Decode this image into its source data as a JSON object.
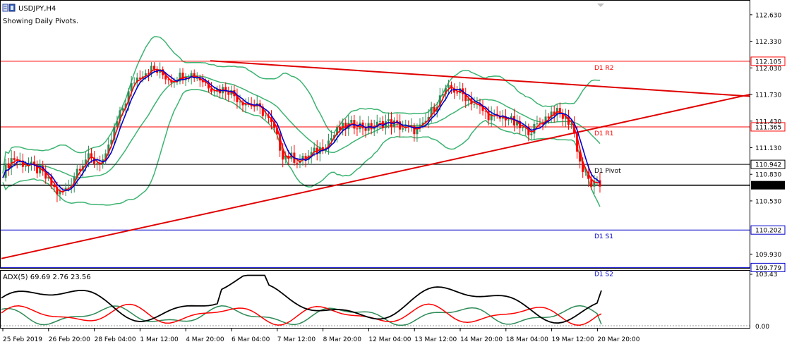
{
  "header": {
    "symbol": "USDJPY,H4",
    "subtitle": "Showing Daily Pivots."
  },
  "price_axis": {
    "ticks": [
      "112.630",
      "112.330",
      "112.030",
      "111.730",
      "111.430",
      "111.130",
      "110.830",
      "110.530",
      "109.930"
    ],
    "tick_values": [
      112.63,
      112.33,
      112.03,
      111.73,
      111.43,
      111.13,
      110.83,
      110.53,
      109.93
    ],
    "current_price": "110.707",
    "current_value": 110.707
  },
  "pivots": [
    {
      "key": "r2",
      "label": "D1 R2",
      "price_label": "112.105",
      "value": 112.105,
      "color": "#ff0000"
    },
    {
      "key": "r1",
      "label": "D1 R1",
      "price_label": "111.365",
      "value": 111.365,
      "color": "#ff0000"
    },
    {
      "key": "pivot",
      "label": "D1 Pivot",
      "price_label": "110.942",
      "value": 110.942,
      "color": "#000000"
    },
    {
      "key": "s1",
      "label": "D1 S1",
      "price_label": "110.202",
      "value": 110.202,
      "color": "#0000cc"
    },
    {
      "key": "s2",
      "label": "D1 S2",
      "price_label": "109.779",
      "value": 109.779,
      "color": "#0000cc"
    }
  ],
  "time_axis": {
    "labels": [
      "25 Feb 2019",
      "26 Feb 20:00",
      "28 Feb 04:00",
      "1 Mar 12:00",
      "4 Mar 20:00",
      "6 Mar 04:00",
      "7 Mar 12:00",
      "8 Mar 20:00",
      "12 Mar 04:00",
      "13 Mar 12:00",
      "14 Mar 20:00",
      "18 Mar 04:00",
      "19 Mar 12:00",
      "20 Mar 20:00"
    ]
  },
  "indicator": {
    "title": "ADX(5) 69.69 2.76 23.56",
    "scale_top": "103.43",
    "scale_bottom": "0.00",
    "adx": 69.69,
    "plus_di": 2.76,
    "minus_di": 23.56,
    "colors": {
      "adx": "#000000",
      "plus_di": "#2e8b57",
      "minus_di": "#ff0000"
    }
  },
  "colors": {
    "bull": "#2e8b57",
    "bear": "#ff0000",
    "bollinger": "#3cb371",
    "ma_fast": "#ff0000",
    "ma_slow": "#0000cc",
    "trendline": "#e00000"
  },
  "chart_data": {
    "type": "candlestick",
    "symbol": "USDJPY",
    "timeframe": "H4",
    "ylim": [
      109.79,
      112.78
    ],
    "close_profile": [
      110.85,
      111.02,
      110.96,
      110.92,
      110.86,
      110.74,
      110.6,
      110.68,
      110.9,
      111.02,
      110.96,
      111.0,
      111.35,
      111.62,
      111.88,
      111.98,
      112.02,
      111.96,
      111.9,
      111.94,
      111.97,
      111.92,
      111.84,
      111.78,
      111.8,
      111.7,
      111.64,
      111.6,
      111.52,
      111.35,
      111.05,
      111.02,
      110.98,
      111.05,
      111.12,
      111.22,
      111.33,
      111.38,
      111.4,
      111.35,
      111.38,
      111.42,
      111.4,
      111.35,
      111.33,
      111.36,
      111.55,
      111.72,
      111.8,
      111.75,
      111.68,
      111.58,
      111.5,
      111.45,
      111.48,
      111.38,
      111.32,
      111.35,
      111.45,
      111.55,
      111.48,
      111.4,
      110.9,
      110.72,
      110.7
    ]
  },
  "annotations": {
    "trendline_count": 2
  }
}
